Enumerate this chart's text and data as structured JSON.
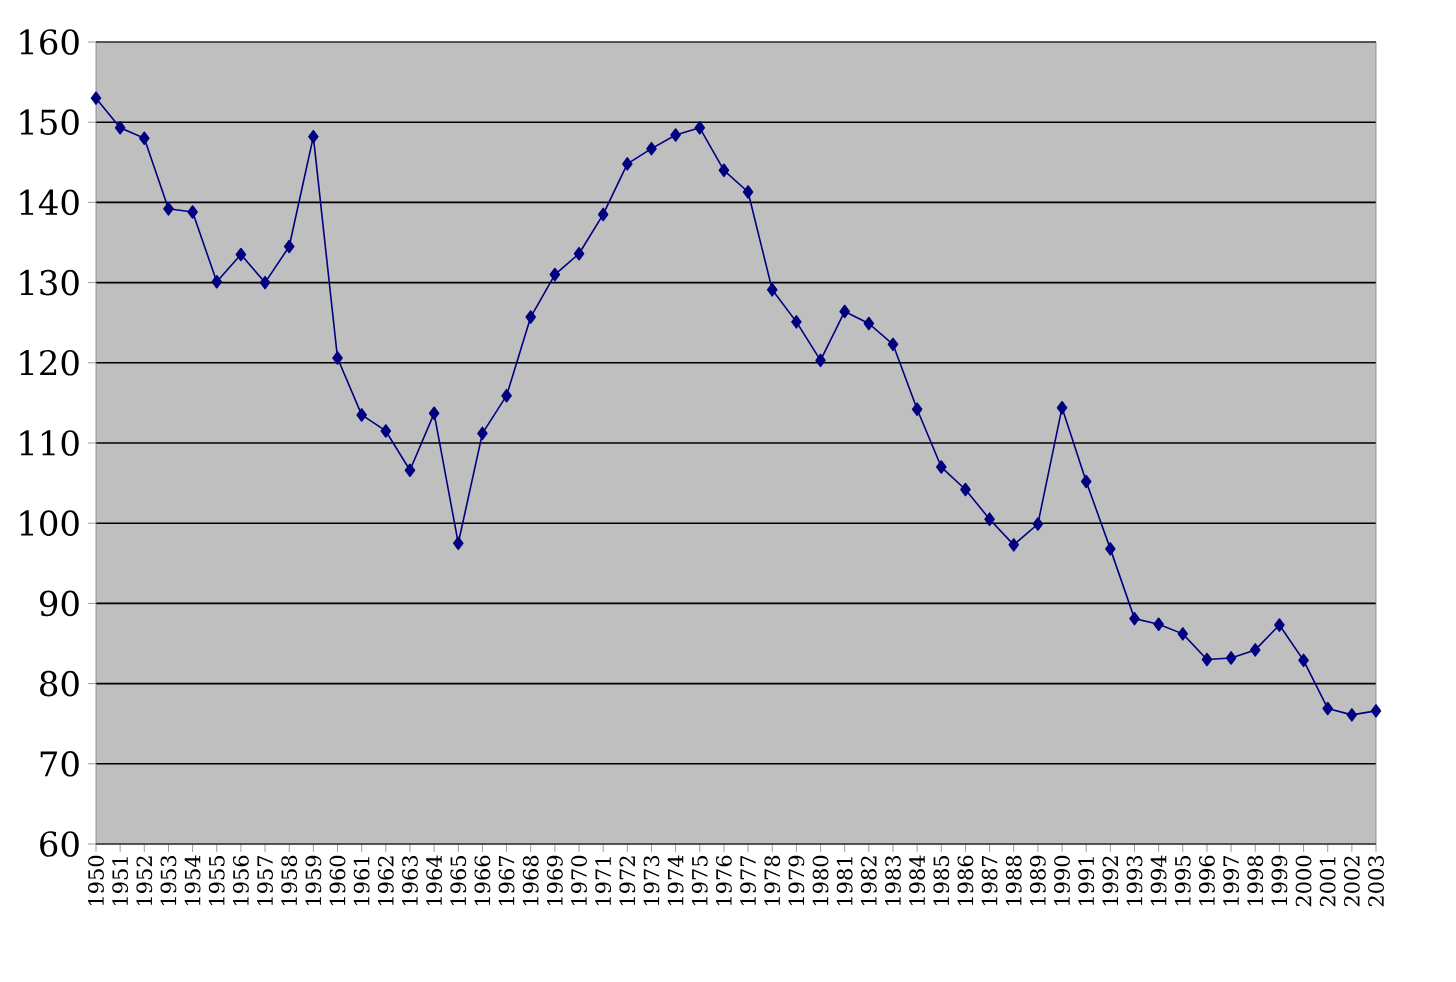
{
  "chart_data": {
    "type": "line",
    "categories": [
      "1950",
      "1951",
      "1952",
      "1953",
      "1954",
      "1955",
      "1956",
      "1957",
      "1958",
      "1959",
      "1960",
      "1961",
      "1962",
      "1963",
      "1964",
      "1965",
      "1966",
      "1967",
      "1968",
      "1969",
      "1970",
      "1971",
      "1972",
      "1973",
      "1974",
      "1975",
      "1976",
      "1977",
      "1978",
      "1979",
      "1980",
      "1981",
      "1982",
      "1983",
      "1984",
      "1985",
      "1986",
      "1987",
      "1988",
      "1989",
      "1990",
      "1991",
      "1992",
      "1993",
      "1994",
      "1995",
      "1996",
      "1997",
      "1998",
      "1999",
      "2000",
      "2001",
      "2002",
      "2003"
    ],
    "series": [
      {
        "color": "#000080",
        "values": [
          153,
          149.3,
          148,
          139.2,
          138.8,
          130.1,
          133.5,
          130,
          134.5,
          148.2,
          120.6,
          113.5,
          111.5,
          106.6,
          113.7,
          97.5,
          111.2,
          115.9,
          125.7,
          131,
          133.6,
          138.5,
          144.8,
          146.7,
          148.4,
          149.3,
          144,
          141.3,
          129.1,
          125.1,
          120.3,
          126.4,
          124.9,
          122.3,
          114.2,
          107,
          104.2,
          100.5,
          97.3,
          99.9,
          114.4,
          105.2,
          96.8,
          88.1,
          87.4,
          86.2,
          83,
          83.2,
          84.2,
          87.3,
          82.9,
          76.9,
          76.1,
          76.6
        ]
      }
    ],
    "ylim": [
      60,
      160
    ],
    "yticks": [
      60,
      70,
      80,
      90,
      100,
      110,
      120,
      130,
      140,
      150,
      160
    ],
    "grid": "y",
    "marker": "diamond",
    "line_style": "solid"
  }
}
